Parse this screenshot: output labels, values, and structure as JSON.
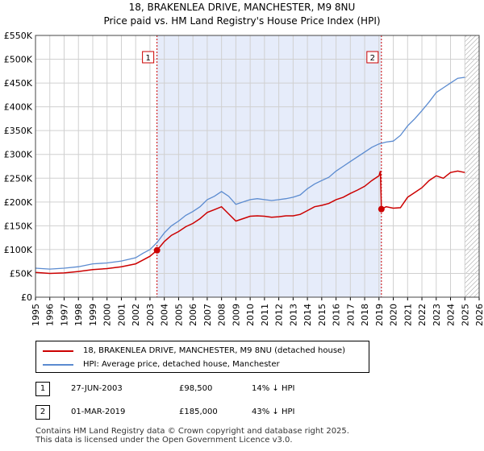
{
  "chart_data": {
    "type": "line",
    "title": "18, BRAKENLEA DRIVE, MANCHESTER, M9 8NU",
    "subtitle": "Price paid vs. HM Land Registry's House Price Index (HPI)",
    "xlim": [
      1995,
      2026
    ],
    "ylim": [
      0,
      550000
    ],
    "x_ticks": [
      "1995",
      "1996",
      "1997",
      "1998",
      "1999",
      "2000",
      "2001",
      "2002",
      "2003",
      "2004",
      "2005",
      "2006",
      "2007",
      "2008",
      "2009",
      "2010",
      "2011",
      "2012",
      "2013",
      "2014",
      "2015",
      "2016",
      "2017",
      "2018",
      "2019",
      "2020",
      "2021",
      "2022",
      "2023",
      "2024",
      "2025",
      "2026"
    ],
    "y_ticks": [
      {
        "value": 0,
        "label": "£0"
      },
      {
        "value": 50000,
        "label": "£50K"
      },
      {
        "value": 100000,
        "label": "£100K"
      },
      {
        "value": 150000,
        "label": "£150K"
      },
      {
        "value": 200000,
        "label": "£200K"
      },
      {
        "value": 250000,
        "label": "£250K"
      },
      {
        "value": 300000,
        "label": "£300K"
      },
      {
        "value": 350000,
        "label": "£350K"
      },
      {
        "value": 400000,
        "label": "£400K"
      },
      {
        "value": 450000,
        "label": "£450K"
      },
      {
        "value": 500000,
        "label": "£500K"
      },
      {
        "value": 550000,
        "label": "£550K"
      }
    ],
    "grid": true,
    "shaded_period": [
      2003.49,
      2019.17
    ],
    "forecast_hatch_from": 2025.0,
    "series": [
      {
        "name": "18, BRAKENLEA DRIVE, MANCHESTER, M9 8NU (detached house)",
        "color": "#cc0000",
        "x": [
          1995.0,
          1996.0,
          1997.0,
          1998.0,
          1999.0,
          2000.0,
          2001.0,
          2002.0,
          2002.5,
          2003.0,
          2003.49,
          2004.0,
          2004.5,
          2005.0,
          2005.5,
          2006.0,
          2006.5,
          2007.0,
          2007.5,
          2008.0,
          2008.5,
          2009.0,
          2009.5,
          2010.0,
          2010.5,
          2011.0,
          2011.5,
          2012.0,
          2012.5,
          2013.0,
          2013.5,
          2014.0,
          2014.5,
          2015.0,
          2015.5,
          2016.0,
          2016.5,
          2017.0,
          2017.5,
          2018.0,
          2018.5,
          2019.0,
          2019.1,
          2019.17,
          2019.5,
          2020.0,
          2020.5,
          2021.0,
          2021.5,
          2022.0,
          2022.5,
          2023.0,
          2023.5,
          2024.0,
          2024.5,
          2025.0
        ],
        "y": [
          52000,
          50000,
          51000,
          54000,
          58000,
          60000,
          64000,
          70000,
          78000,
          86000,
          98500,
          117000,
          130000,
          138000,
          148000,
          155000,
          165000,
          178000,
          184000,
          190000,
          175000,
          160000,
          165000,
          170000,
          171000,
          170000,
          168000,
          169000,
          171000,
          171000,
          174000,
          182000,
          190000,
          193000,
          197000,
          205000,
          210000,
          218000,
          225000,
          233000,
          245000,
          255000,
          265000,
          185000,
          190000,
          187000,
          188000,
          210000,
          220000,
          230000,
          245000,
          255000,
          250000,
          262000,
          265000,
          262000
        ]
      },
      {
        "name": "HPI: Average price, detached house, Manchester",
        "color": "#5b8bd0",
        "x": [
          1995.0,
          1996.0,
          1997.0,
          1998.0,
          1999.0,
          2000.0,
          2001.0,
          2002.0,
          2002.5,
          2003.0,
          2003.5,
          2004.0,
          2004.5,
          2005.0,
          2005.5,
          2006.0,
          2006.5,
          2007.0,
          2007.5,
          2008.0,
          2008.5,
          2009.0,
          2009.5,
          2010.0,
          2010.5,
          2011.0,
          2011.5,
          2012.0,
          2012.5,
          2013.0,
          2013.5,
          2014.0,
          2014.5,
          2015.0,
          2015.5,
          2016.0,
          2016.5,
          2017.0,
          2017.5,
          2018.0,
          2018.5,
          2019.0,
          2019.5,
          2020.0,
          2020.5,
          2021.0,
          2021.5,
          2022.0,
          2022.5,
          2023.0,
          2023.5,
          2024.0,
          2024.5,
          2025.0
        ],
        "y": [
          61000,
          59000,
          61000,
          64000,
          70000,
          72000,
          76000,
          83000,
          92000,
          100000,
          115000,
          135000,
          150000,
          160000,
          172000,
          180000,
          190000,
          205000,
          212000,
          222000,
          212000,
          195000,
          200000,
          205000,
          207000,
          205000,
          203000,
          205000,
          207000,
          210000,
          215000,
          228000,
          238000,
          245000,
          252000,
          265000,
          275000,
          285000,
          295000,
          305000,
          315000,
          322000,
          326000,
          328000,
          340000,
          360000,
          375000,
          392000,
          410000,
          430000,
          440000,
          450000,
          460000,
          462000
        ]
      }
    ],
    "annotations": [
      {
        "label": "1",
        "x": 2003.49,
        "y": 98500
      },
      {
        "label": "2",
        "x": 2019.17,
        "y": 185000
      }
    ]
  },
  "legend": {
    "items": [
      {
        "label": "18, BRAKENLEA DRIVE, MANCHESTER, M9 8NU (detached house)",
        "color": "#cc0000"
      },
      {
        "label": "HPI: Average price, detached house, Manchester",
        "color": "#5b8bd0"
      }
    ]
  },
  "transactions": [
    {
      "num": "1",
      "date": "27-JUN-2003",
      "price": "£98,500",
      "hpi": "14% ↓ HPI"
    },
    {
      "num": "2",
      "date": "01-MAR-2019",
      "price": "£185,000",
      "hpi": "43% ↓ HPI"
    }
  ],
  "footer": {
    "line1": "Contains HM Land Registry data © Crown copyright and database right 2025.",
    "line2": "This data is licensed under the Open Government Licence v3.0."
  }
}
